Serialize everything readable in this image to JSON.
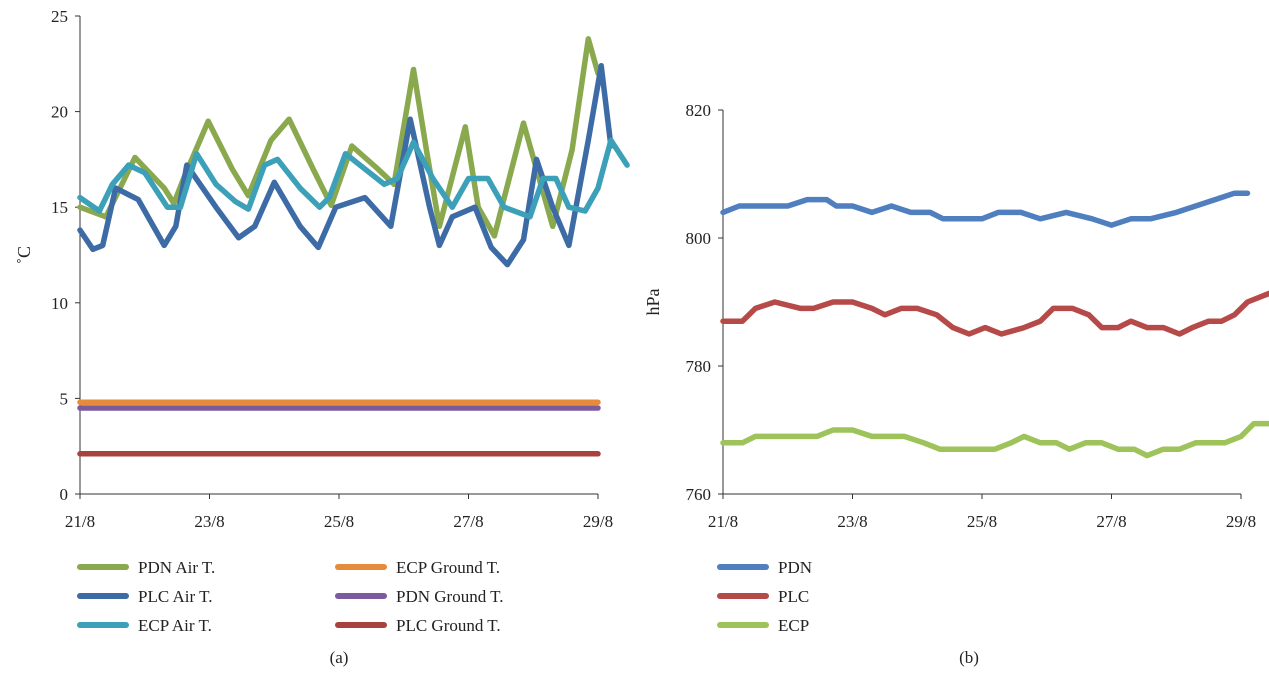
{
  "chart_data": [
    {
      "type": "line",
      "panel_label": "(a)",
      "ylabel": "˚C",
      "xlabel": "",
      "ylim": [
        0,
        25
      ],
      "yticks": [
        0,
        5,
        10,
        15,
        20,
        25
      ],
      "x_range": [
        21,
        29
      ],
      "xticks": [
        {
          "value": 21,
          "label": "21/8"
        },
        {
          "value": 23,
          "label": "23/8"
        },
        {
          "value": 25,
          "label": "25/8"
        },
        {
          "value": 27,
          "label": "27/8"
        },
        {
          "value": 29,
          "label": "29/8"
        }
      ],
      "grid": false,
      "legend_position": "bottom",
      "series": [
        {
          "name": "PDN Air T.",
          "color": "#8aa84e",
          "points": [
            [
              21.0,
              15.0
            ],
            [
              21.4,
              14.5
            ],
            [
              21.85,
              17.6
            ],
            [
              22.3,
              16.0
            ],
            [
              22.45,
              15.2
            ],
            [
              22.6,
              16.5
            ],
            [
              22.98,
              19.5
            ],
            [
              23.35,
              17.0
            ],
            [
              23.6,
              15.6
            ],
            [
              23.95,
              18.5
            ],
            [
              24.23,
              19.6
            ],
            [
              24.6,
              17.0
            ],
            [
              24.88,
              15.1
            ],
            [
              25.2,
              18.2
            ],
            [
              25.6,
              17.0
            ],
            [
              25.85,
              16.2
            ],
            [
              26.15,
              22.2
            ],
            [
              26.35,
              18.0
            ],
            [
              26.55,
              14.0
            ],
            [
              26.95,
              19.2
            ],
            [
              27.15,
              15.0
            ],
            [
              27.4,
              13.5
            ],
            [
              27.85,
              19.4
            ],
            [
              28.3,
              14.0
            ],
            [
              28.6,
              18.0
            ],
            [
              28.85,
              23.8
            ],
            [
              29.0,
              22.0
            ]
          ]
        },
        {
          "name": "PLC Air T.",
          "color": "#3d6ba6",
          "points": [
            [
              21.0,
              13.8
            ],
            [
              21.2,
              12.8
            ],
            [
              21.35,
              13.0
            ],
            [
              21.55,
              16.0
            ],
            [
              21.9,
              15.4
            ],
            [
              22.3,
              13.0
            ],
            [
              22.48,
              14.0
            ],
            [
              22.65,
              17.2
            ],
            [
              23.1,
              15.0
            ],
            [
              23.45,
              13.4
            ],
            [
              23.7,
              14.0
            ],
            [
              24.0,
              16.3
            ],
            [
              24.4,
              14.0
            ],
            [
              24.68,
              12.9
            ],
            [
              24.95,
              15.0
            ],
            [
              25.4,
              15.5
            ],
            [
              25.8,
              14.0
            ],
            [
              26.1,
              19.6
            ],
            [
              26.4,
              15.0
            ],
            [
              26.55,
              13.0
            ],
            [
              26.75,
              14.5
            ],
            [
              27.1,
              15.0
            ],
            [
              27.35,
              12.9
            ],
            [
              27.6,
              12.0
            ],
            [
              27.85,
              13.3
            ],
            [
              28.05,
              17.5
            ],
            [
              28.3,
              15.0
            ],
            [
              28.55,
              13.0
            ],
            [
              28.85,
              18.5
            ],
            [
              29.05,
              22.4
            ],
            [
              29.2,
              18.2
            ]
          ]
        },
        {
          "name": "ECP Air T.",
          "color": "#3ba0b8",
          "points": [
            [
              21.0,
              15.5
            ],
            [
              21.3,
              14.8
            ],
            [
              21.5,
              16.2
            ],
            [
              21.75,
              17.2
            ],
            [
              22.0,
              16.8
            ],
            [
              22.35,
              15.0
            ],
            [
              22.55,
              15.0
            ],
            [
              22.8,
              17.8
            ],
            [
              23.1,
              16.2
            ],
            [
              23.4,
              15.3
            ],
            [
              23.6,
              14.9
            ],
            [
              23.85,
              17.2
            ],
            [
              24.05,
              17.5
            ],
            [
              24.4,
              16.0
            ],
            [
              24.7,
              15.0
            ],
            [
              24.85,
              15.5
            ],
            [
              25.1,
              17.8
            ],
            [
              25.4,
              17.0
            ],
            [
              25.7,
              16.2
            ],
            [
              25.9,
              16.5
            ],
            [
              26.15,
              18.4
            ],
            [
              26.45,
              16.5
            ],
            [
              26.75,
              15.0
            ],
            [
              27.0,
              16.5
            ],
            [
              27.3,
              16.5
            ],
            [
              27.55,
              15.0
            ],
            [
              27.95,
              14.5
            ],
            [
              28.15,
              16.5
            ],
            [
              28.35,
              16.5
            ],
            [
              28.55,
              15.0
            ],
            [
              28.8,
              14.8
            ],
            [
              29.0,
              16.0
            ],
            [
              29.2,
              18.5
            ],
            [
              29.45,
              17.2
            ]
          ]
        },
        {
          "name": "ECP Ground T.",
          "color": "#e68a3c",
          "points": [
            [
              21.0,
              4.8
            ],
            [
              29.0,
              4.8
            ]
          ]
        },
        {
          "name": "PDN Ground T.",
          "color": "#7b5b9e",
          "points": [
            [
              21.0,
              4.5
            ],
            [
              29.0,
              4.5
            ]
          ]
        },
        {
          "name": "PLC Ground T.",
          "color": "#a8423f",
          "points": [
            [
              21.0,
              2.1
            ],
            [
              29.0,
              2.1
            ]
          ]
        }
      ]
    },
    {
      "type": "line",
      "panel_label": "(b)",
      "ylabel": "hPa",
      "xlabel": "",
      "ylim": [
        760,
        820
      ],
      "yticks": [
        760,
        780,
        800,
        820
      ],
      "x_range": [
        21,
        29
      ],
      "xticks": [
        {
          "value": 21,
          "label": "21/8"
        },
        {
          "value": 23,
          "label": "23/8"
        },
        {
          "value": 25,
          "label": "25/8"
        },
        {
          "value": 27,
          "label": "27/8"
        },
        {
          "value": 29,
          "label": "29/8"
        }
      ],
      "grid": false,
      "legend_position": "bottom",
      "series": [
        {
          "name": "PDN",
          "color": "#4f7fbf",
          "points": [
            [
              21.0,
              804
            ],
            [
              21.25,
              805
            ],
            [
              21.5,
              805
            ],
            [
              22.0,
              805
            ],
            [
              22.3,
              806
            ],
            [
              22.6,
              806
            ],
            [
              22.75,
              805
            ],
            [
              23.0,
              805
            ],
            [
              23.3,
              804
            ],
            [
              23.6,
              805
            ],
            [
              23.9,
              804
            ],
            [
              24.2,
              804
            ],
            [
              24.4,
              803
            ],
            [
              24.7,
              803
            ],
            [
              25.0,
              803
            ],
            [
              25.25,
              804
            ],
            [
              25.6,
              804
            ],
            [
              25.9,
              803
            ],
            [
              26.3,
              804
            ],
            [
              26.7,
              803
            ],
            [
              27.0,
              802
            ],
            [
              27.3,
              803
            ],
            [
              27.6,
              803
            ],
            [
              28.0,
              804
            ],
            [
              28.3,
              805
            ],
            [
              28.6,
              806
            ],
            [
              28.9,
              807
            ],
            [
              29.1,
              807
            ]
          ]
        },
        {
          "name": "PLC",
          "color": "#b64a48",
          "points": [
            [
              21.0,
              787
            ],
            [
              21.3,
              787
            ],
            [
              21.5,
              789
            ],
            [
              21.8,
              790
            ],
            [
              22.2,
              789
            ],
            [
              22.4,
              789
            ],
            [
              22.7,
              790
            ],
            [
              23.0,
              790
            ],
            [
              23.3,
              789
            ],
            [
              23.5,
              788
            ],
            [
              23.75,
              789
            ],
            [
              24.0,
              789
            ],
            [
              24.3,
              788
            ],
            [
              24.55,
              786
            ],
            [
              24.8,
              785
            ],
            [
              25.05,
              786
            ],
            [
              25.3,
              785
            ],
            [
              25.65,
              786
            ],
            [
              25.9,
              787
            ],
            [
              26.1,
              789
            ],
            [
              26.4,
              789
            ],
            [
              26.65,
              788
            ],
            [
              26.85,
              786
            ],
            [
              27.1,
              786
            ],
            [
              27.3,
              787
            ],
            [
              27.55,
              786
            ],
            [
              27.8,
              786
            ],
            [
              28.05,
              785
            ],
            [
              28.25,
              786
            ],
            [
              28.5,
              787
            ],
            [
              28.7,
              787
            ],
            [
              28.9,
              788
            ],
            [
              29.1,
              790
            ],
            [
              29.35,
              791
            ],
            [
              29.6,
              792
            ]
          ]
        },
        {
          "name": "ECP",
          "color": "#9dc35a",
          "points": [
            [
              21.0,
              768
            ],
            [
              21.3,
              768
            ],
            [
              21.5,
              769
            ],
            [
              21.8,
              769
            ],
            [
              22.2,
              769
            ],
            [
              22.45,
              769
            ],
            [
              22.7,
              770
            ],
            [
              23.0,
              770
            ],
            [
              23.3,
              769
            ],
            [
              23.55,
              769
            ],
            [
              23.8,
              769
            ],
            [
              24.1,
              768
            ],
            [
              24.35,
              767
            ],
            [
              24.6,
              767
            ],
            [
              24.9,
              767
            ],
            [
              25.2,
              767
            ],
            [
              25.45,
              768
            ],
            [
              25.65,
              769
            ],
            [
              25.9,
              768
            ],
            [
              26.15,
              768
            ],
            [
              26.35,
              767
            ],
            [
              26.6,
              768
            ],
            [
              26.85,
              768
            ],
            [
              27.1,
              767
            ],
            [
              27.35,
              767
            ],
            [
              27.55,
              766
            ],
            [
              27.8,
              767
            ],
            [
              28.05,
              767
            ],
            [
              28.3,
              768
            ],
            [
              28.55,
              768
            ],
            [
              28.75,
              768
            ],
            [
              29.0,
              769
            ],
            [
              29.2,
              771
            ],
            [
              29.45,
              771
            ]
          ]
        }
      ]
    }
  ]
}
